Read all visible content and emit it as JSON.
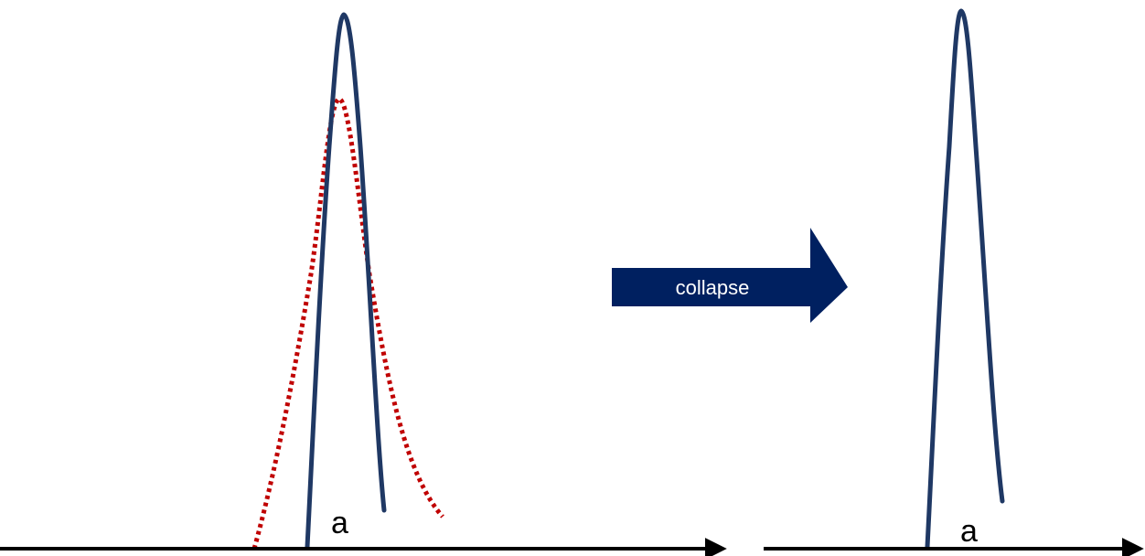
{
  "colors": {
    "solid_curve": "#1f3864",
    "dotted_curve": "#c00000",
    "arrow_fill": "#002060",
    "axis": "#000000"
  },
  "left_panel": {
    "point_label": "a"
  },
  "transition_arrow": {
    "label": "collapse"
  },
  "right_panel": {
    "point_label": "a"
  }
}
